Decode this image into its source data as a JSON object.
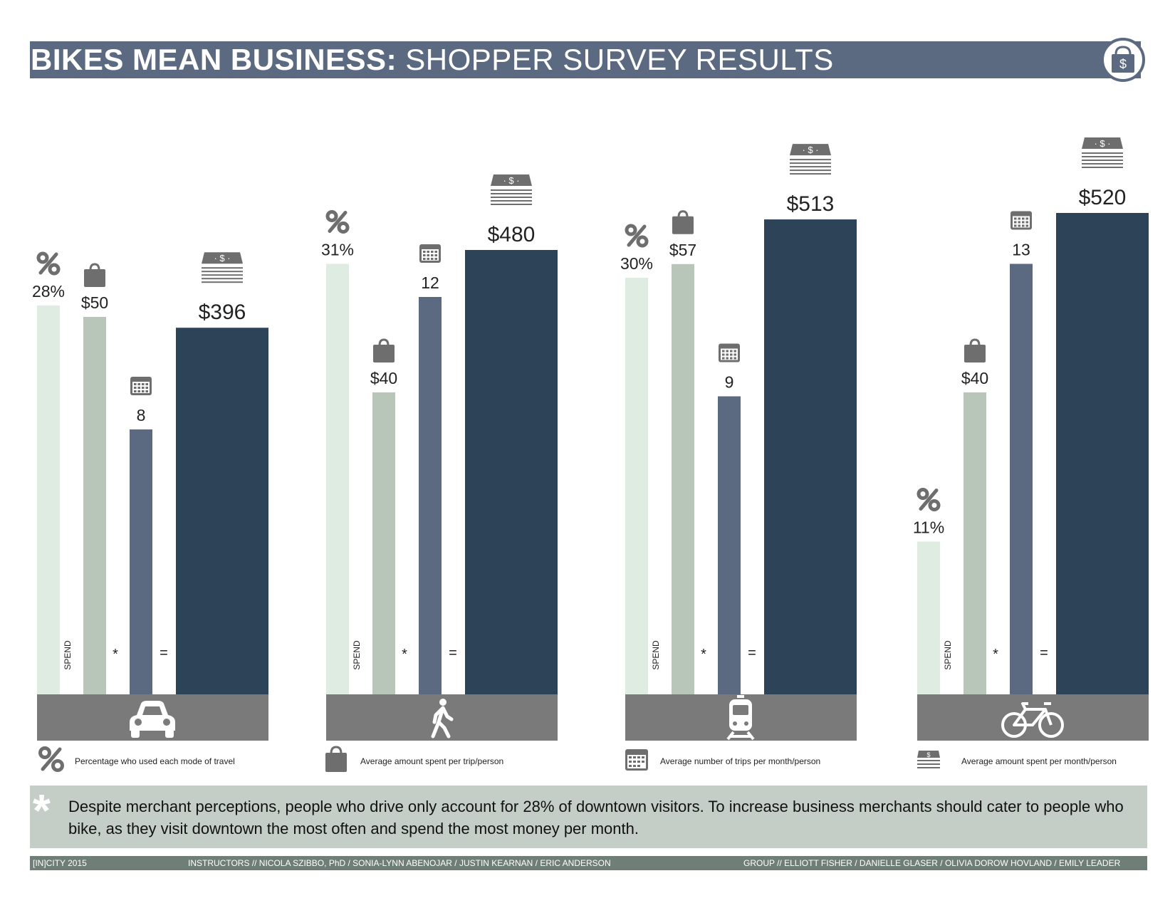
{
  "header": {
    "title_bold": "BIKES MEAN BUSINESS:",
    "title_regular": "SHOPPER SURVEY RESULTS"
  },
  "chart_data": {
    "type": "bar",
    "categories": [
      "Drive",
      "Walk",
      "Transit",
      "Bike"
    ],
    "series": [
      {
        "name": "Percentage who used each mode of travel",
        "values": [
          28,
          31,
          30,
          11
        ],
        "labels": [
          "28%",
          "31%",
          "30%",
          "11%"
        ],
        "color": "#dfece1"
      },
      {
        "name": "Average amount spent per trip/person",
        "values": [
          50,
          40,
          57,
          40
        ],
        "labels": [
          "$50",
          "$40",
          "$57",
          "$40"
        ],
        "color": "#b7c6b9"
      },
      {
        "name": "Average number of trips per month/person",
        "values": [
          8,
          12,
          9,
          13
        ],
        "labels": [
          "8",
          "12",
          "9",
          "13"
        ],
        "color": "#5b6a80"
      },
      {
        "name": "Average amount spent per month/person",
        "values": [
          396,
          480,
          513,
          520
        ],
        "labels": [
          "$396",
          "$480",
          "$513",
          "$520"
        ],
        "color": "#2d4358"
      }
    ],
    "operators": {
      "spend": "SPEND",
      "multiply": "*",
      "equals": "="
    },
    "legend_position": "bottom",
    "grid": false
  },
  "legend": {
    "items": [
      {
        "icon": "percent-icon",
        "label": "Percentage who used each mode of travel"
      },
      {
        "icon": "shopping-bag-icon",
        "label": "Average amount spent per trip/person"
      },
      {
        "icon": "calendar-icon",
        "label": "Average number of trips per month/person"
      },
      {
        "icon": "money-stack-icon",
        "label": "Average amount spent per month/person"
      }
    ]
  },
  "mode_icons": [
    "car-icon",
    "walking-person-icon",
    "train-icon",
    "bicycle-icon"
  ],
  "note": {
    "text": "Despite merchant perceptions, people who drive only account for 28% of downtown visitors. To increase business merchants should cater to people who bike, as they visit downtown the most often and spend the most money per month."
  },
  "footer": {
    "left": "[IN]CITY 2015",
    "center": "INSTRUCTORS // NICOLA SZIBBO, PhD / SONIA-LYNN ABENOJAR / JUSTIN KEARNAN / ERIC ANDERSON",
    "right": "GROUP // ELLIOTT FISHER / DANIELLE GLASER / OLIVIA DOROW HOVLAND / EMILY LEADER"
  },
  "colors": {
    "title_bar": "#5b6a80",
    "mode_bar": "#7a7a7a",
    "note_box": "#c5cec6",
    "footer_bar": "#6f7f77",
    "icon_gray": "#6e6e6e"
  }
}
